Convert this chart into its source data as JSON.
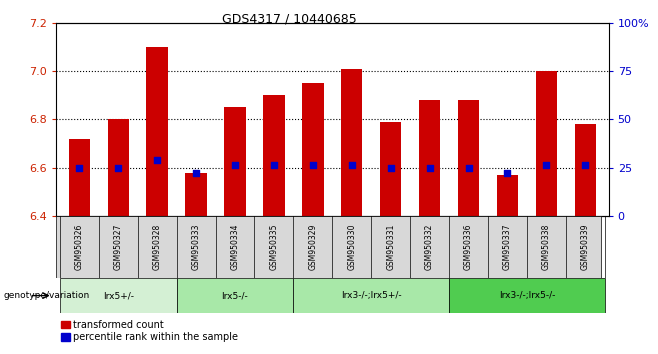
{
  "title": "GDS4317 / 10440685",
  "samples": [
    "GSM950326",
    "GSM950327",
    "GSM950328",
    "GSM950333",
    "GSM950334",
    "GSM950335",
    "GSM950329",
    "GSM950330",
    "GSM950331",
    "GSM950332",
    "GSM950336",
    "GSM950337",
    "GSM950338",
    "GSM950339"
  ],
  "red_values": [
    6.72,
    6.8,
    7.1,
    6.58,
    6.85,
    6.9,
    6.95,
    7.01,
    6.79,
    6.88,
    6.88,
    6.57,
    7.0,
    6.78
  ],
  "blue_values": [
    6.6,
    6.6,
    6.63,
    6.58,
    6.61,
    6.61,
    6.61,
    6.61,
    6.6,
    6.6,
    6.6,
    6.58,
    6.61,
    6.61
  ],
  "ylim_left": [
    6.4,
    7.2
  ],
  "ylim_right": [
    0,
    100
  ],
  "yticks_left": [
    6.4,
    6.6,
    6.8,
    7.0,
    7.2
  ],
  "yticks_right": [
    0,
    25,
    50,
    75,
    100
  ],
  "ytick_labels_right": [
    "0",
    "25",
    "50",
    "75",
    "100%"
  ],
  "gridlines": [
    6.6,
    6.8,
    7.0
  ],
  "groups": [
    {
      "label": "lrx5+/-",
      "start": 0,
      "end": 3,
      "color": "#d4f0d4"
    },
    {
      "label": "lrx5-/-",
      "start": 3,
      "end": 6,
      "color": "#a8e8a8"
    },
    {
      "label": "lrx3-/-;lrx5+/-",
      "start": 6,
      "end": 10,
      "color": "#a8e8a8"
    },
    {
      "label": "lrx3-/-;lrx5-/-",
      "start": 10,
      "end": 14,
      "color": "#50cc50"
    }
  ],
  "bar_color": "#cc0000",
  "dot_color": "#0000cc",
  "sample_bg_color": "#d8d8d8",
  "genotype_label": "genotype/variation",
  "legend_red": "transformed count",
  "legend_blue": "percentile rank within the sample",
  "bar_width": 0.55
}
